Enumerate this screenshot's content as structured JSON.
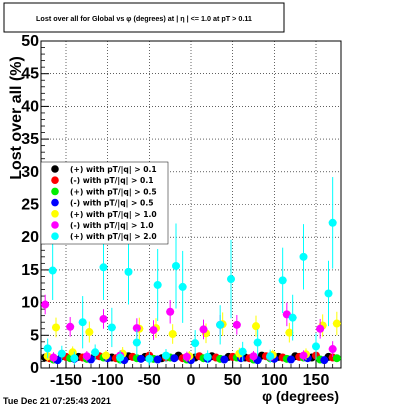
{
  "chart_data": {
    "type": "scatter",
    "title": "Lost over all for Global vs φ (degrees) at | η | <= 1.0 at pT > 0.11",
    "xlabel": "φ (degrees)",
    "ylabel": "Lost over all (%)",
    "xlim": [
      -180,
      180
    ],
    "ylim": [
      0,
      50
    ],
    "x_ticks": [
      -150,
      -100,
      -50,
      0,
      50,
      100,
      150
    ],
    "y_ticks": [
      0,
      5,
      10,
      15,
      20,
      25,
      30,
      35,
      40,
      45,
      50
    ],
    "grid": true,
    "legend_position": "left",
    "series": [
      {
        "name": "(+) with pT/|q| > 0.1",
        "color": "#000000",
        "x": [
          -175,
          -155,
          -135,
          -115,
          -95,
          -75,
          -55,
          -35,
          -15,
          5,
          25,
          45,
          65,
          85,
          105,
          125,
          145,
          165
        ],
        "y": [
          1.6,
          1.8,
          1.7,
          1.9,
          1.6,
          1.8,
          1.7,
          1.5,
          1.9,
          1.6,
          1.8,
          1.7,
          1.6,
          1.9,
          1.7,
          1.8,
          1.6,
          1.7
        ],
        "err": [
          0.4,
          0.4,
          0.4,
          0.4,
          0.4,
          0.4,
          0.4,
          0.4,
          0.4,
          0.4,
          0.4,
          0.4,
          0.4,
          0.4,
          0.4,
          0.4,
          0.4,
          0.4
        ]
      },
      {
        "name": "(-) with pT/|q| > 0.1",
        "color": "#ff0000",
        "x": [
          -170,
          -150,
          -130,
          -110,
          -90,
          -70,
          -50,
          -30,
          -10,
          10,
          30,
          50,
          70,
          90,
          110,
          130,
          150,
          170
        ],
        "y": [
          1.5,
          1.7,
          1.6,
          1.8,
          1.5,
          1.7,
          1.9,
          1.6,
          1.5,
          1.8,
          1.6,
          1.7,
          1.5,
          1.8,
          1.6,
          1.7,
          1.9,
          1.6
        ],
        "err": [
          0.4,
          0.4,
          0.4,
          0.4,
          0.4,
          0.4,
          0.4,
          0.4,
          0.4,
          0.4,
          0.4,
          0.4,
          0.4,
          0.4,
          0.4,
          0.4,
          0.4,
          0.4
        ]
      },
      {
        "name": "(+) with pT/|q| > 0.5",
        "color": "#00ee00",
        "x": [
          -165,
          -145,
          -125,
          -105,
          -85,
          -65,
          -45,
          -25,
          -5,
          15,
          35,
          55,
          75,
          95,
          115,
          135,
          155,
          175
        ],
        "y": [
          1.3,
          1.5,
          1.4,
          1.6,
          1.3,
          1.5,
          1.4,
          1.6,
          1.3,
          1.5,
          1.4,
          1.6,
          1.3,
          1.5,
          1.4,
          1.6,
          1.3,
          1.5
        ],
        "err": [
          0.4,
          0.4,
          0.4,
          0.4,
          0.4,
          0.4,
          0.4,
          0.4,
          0.4,
          0.4,
          0.4,
          0.4,
          0.4,
          0.4,
          0.4,
          0.4,
          0.4,
          0.4
        ]
      },
      {
        "name": "(-) with pT/|q| > 0.5",
        "color": "#0000ff",
        "x": [
          -160,
          -140,
          -120,
          -100,
          -80,
          -60,
          -40,
          -20,
          0,
          20,
          40,
          60,
          80,
          100,
          120,
          140,
          160
        ],
        "y": [
          1.2,
          1.4,
          1.3,
          1.5,
          1.2,
          1.4,
          1.3,
          1.5,
          1.2,
          1.4,
          1.3,
          1.5,
          1.2,
          1.4,
          1.3,
          1.5,
          1.2
        ],
        "err": [
          0.4,
          0.4,
          0.4,
          0.4,
          0.4,
          0.4,
          0.4,
          0.4,
          0.4,
          0.4,
          0.4,
          0.4,
          0.4,
          0.4,
          0.4,
          0.4,
          0.4
        ]
      },
      {
        "name": "(+) with pT/|q| > 1.0",
        "color": "#ffff00",
        "x": [
          -172,
          -162,
          -142,
          -122,
          -102,
          -82,
          -62,
          -42,
          -22,
          -2,
          18,
          38,
          58,
          78,
          98,
          118,
          138,
          158,
          175
        ],
        "y": [
          1.8,
          6.2,
          2.4,
          5.5,
          1.9,
          2.2,
          6.0,
          6.1,
          5.2,
          1.8,
          5.3,
          6.7,
          2.2,
          6.4,
          2.0,
          5.4,
          2.1,
          6.5,
          6.8
        ],
        "err": [
          0.8,
          1.5,
          0.9,
          1.6,
          0.8,
          1.0,
          1.7,
          1.5,
          1.5,
          0.8,
          1.5,
          1.8,
          0.9,
          1.6,
          0.8,
          1.5,
          0.9,
          1.7,
          1.8
        ]
      },
      {
        "name": "(-) with pT/|q| > 1.0",
        "color": "#ff00ff",
        "x": [
          -175,
          -165,
          -145,
          -125,
          -105,
          -85,
          -65,
          -45,
          -25,
          -5,
          15,
          35,
          55,
          75,
          95,
          115,
          135,
          155,
          170
        ],
        "y": [
          9.7,
          1.6,
          6.3,
          1.8,
          7.5,
          1.9,
          6.1,
          5.8,
          8.6,
          1.7,
          5.9,
          6.6,
          6.6,
          1.8,
          1.7,
          8.2,
          1.9,
          6.0,
          2.9
        ],
        "err": [
          1.5,
          0.8,
          1.5,
          0.8,
          1.5,
          0.8,
          1.5,
          1.5,
          1.8,
          0.8,
          1.5,
          1.5,
          1.5,
          0.8,
          0.8,
          1.8,
          0.8,
          1.5,
          1.2
        ]
      },
      {
        "name": "(+) with pT/|q| > 2.0",
        "color": "#00ffff",
        "x": [
          -172,
          -166,
          -155,
          -140,
          -130,
          -115,
          -105,
          -95,
          -85,
          -75,
          -65,
          -50,
          -40,
          -30,
          -18,
          -10,
          5,
          20,
          35,
          48,
          62,
          80,
          95,
          110,
          122,
          135,
          150,
          165,
          170
        ],
        "y": [
          3.0,
          14.9,
          2.2,
          1.5,
          7.0,
          2.4,
          15.4,
          6.2,
          1.6,
          14.7,
          3.9,
          1.4,
          12.7,
          1.9,
          15.6,
          12.4,
          3.8,
          1.7,
          6.6,
          13.6,
          2.5,
          3.9,
          1.8,
          13.4,
          7.7,
          17.0,
          3.3,
          11.4,
          22.2
        ],
        "err": [
          1.5,
          4.5,
          1.2,
          1.0,
          4.0,
          1.2,
          5.0,
          3.0,
          1.0,
          5.0,
          2.0,
          1.0,
          5.5,
          1.0,
          6.5,
          5.5,
          2.0,
          1.0,
          3.0,
          6.0,
          1.5,
          2.0,
          1.0,
          5.0,
          3.5,
          5.0,
          2.0,
          5.0,
          7.0
        ]
      }
    ]
  },
  "footer": {
    "timestamp": "Tue Dec 21 07:25:43 2021"
  }
}
